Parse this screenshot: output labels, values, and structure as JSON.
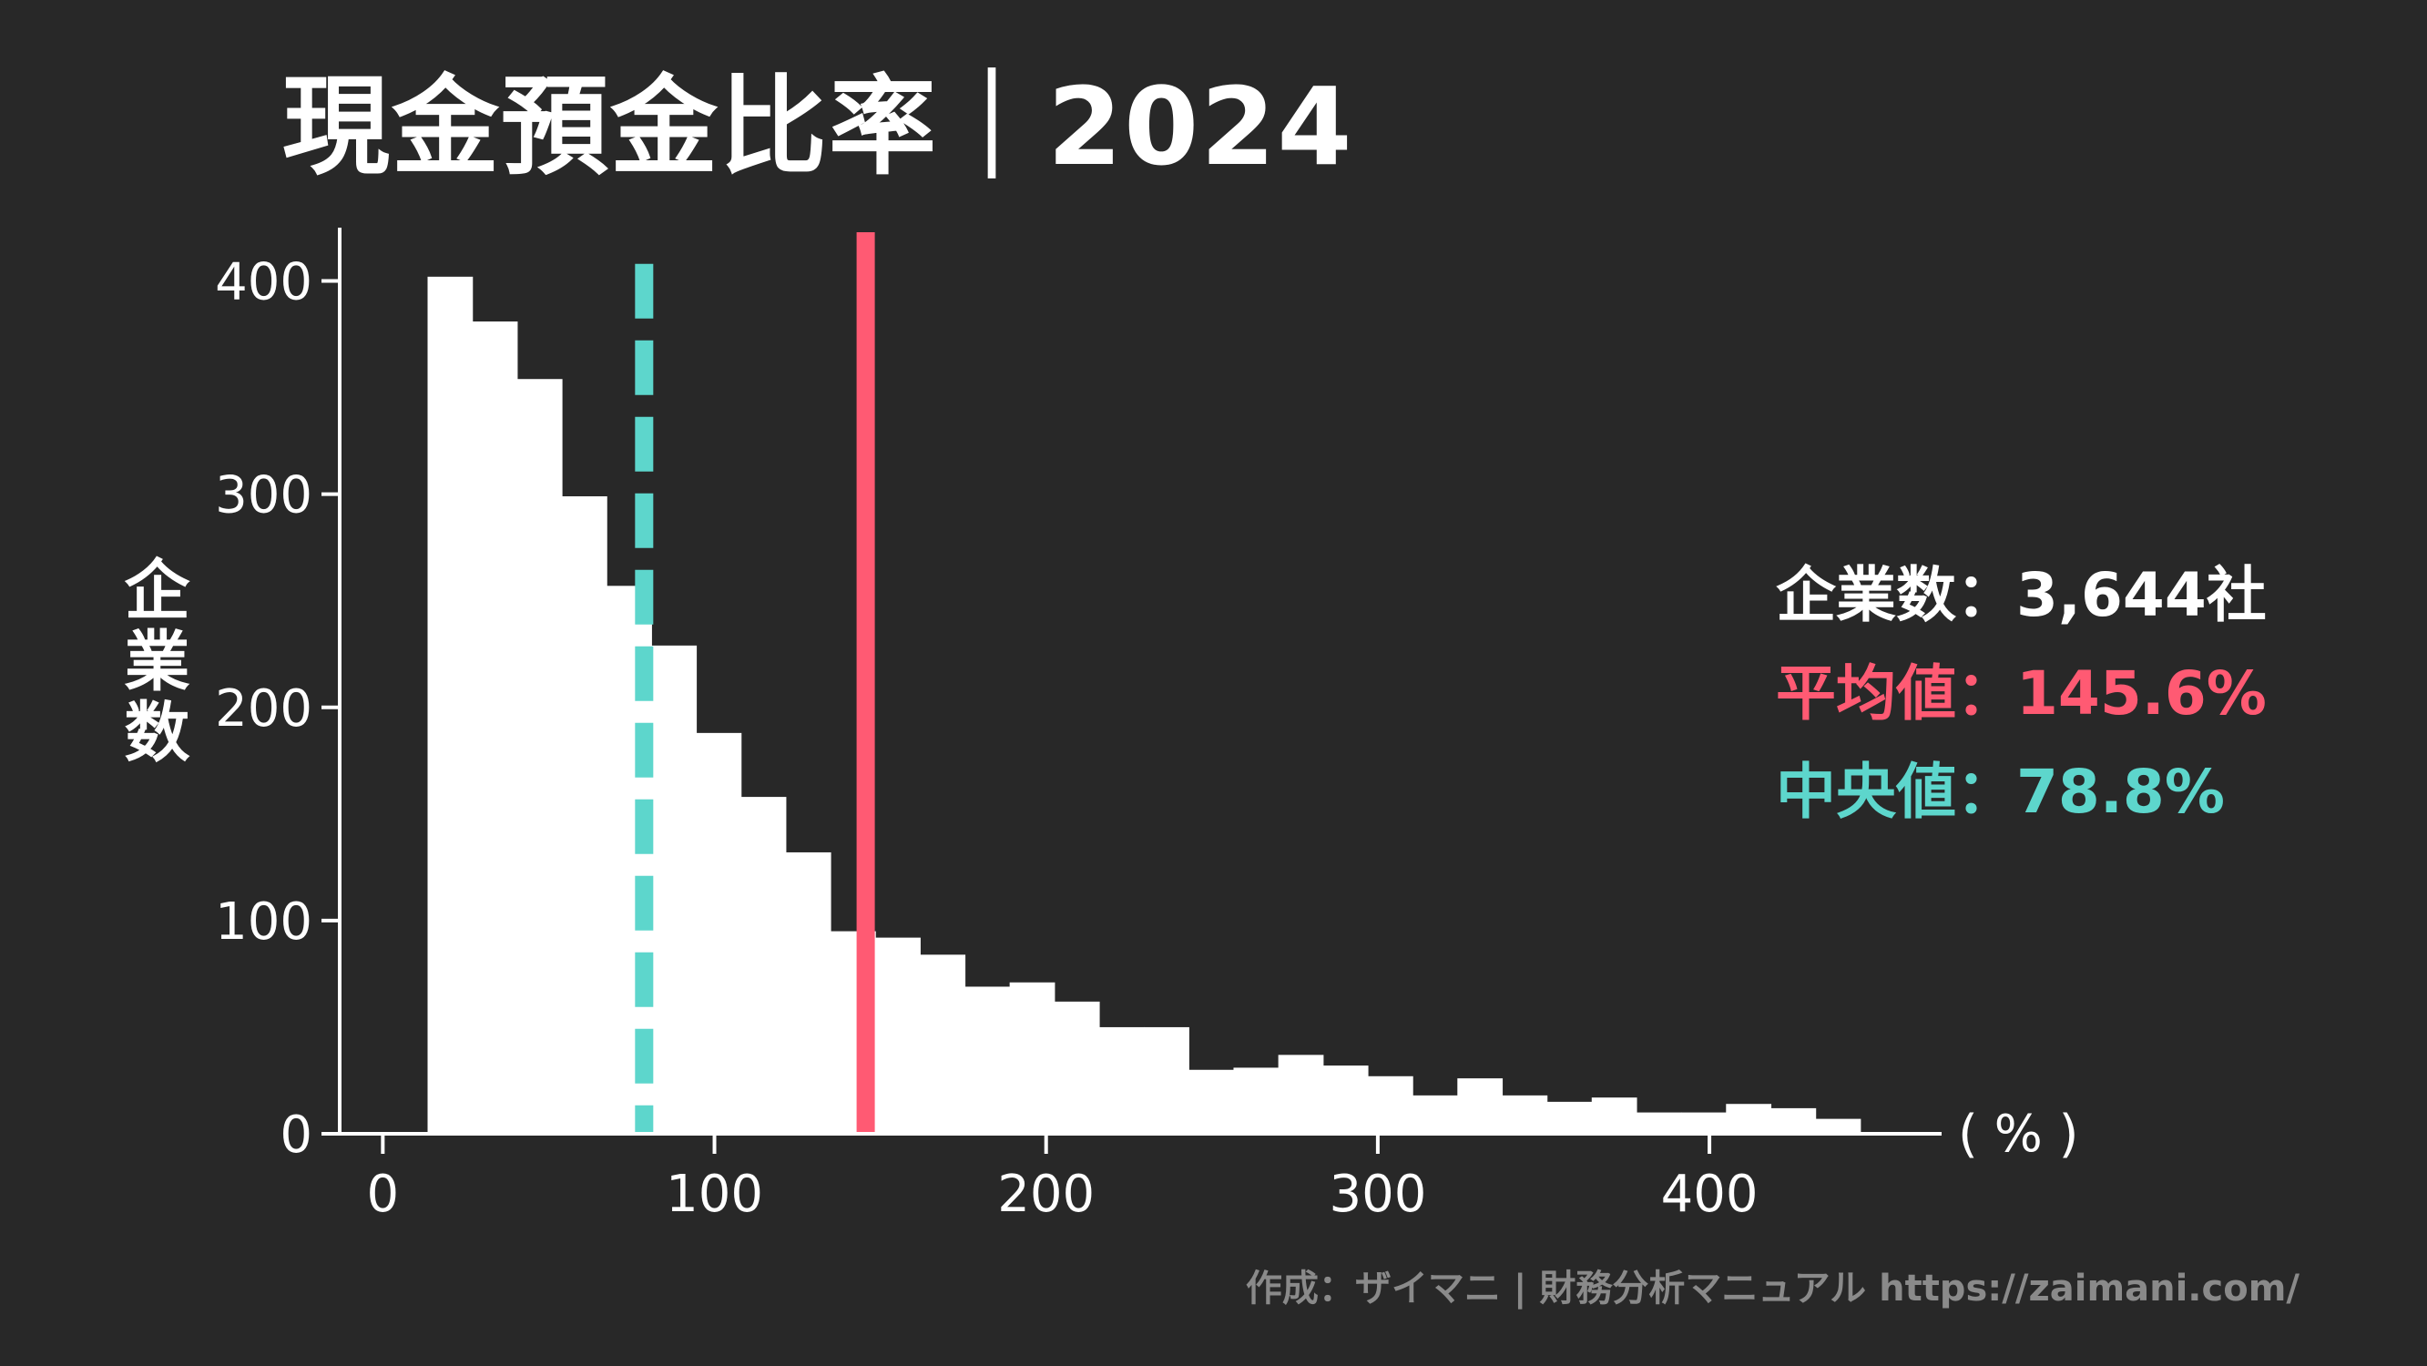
{
  "title": "現金預金比率｜2024",
  "ylabel": "企業数",
  "stats": {
    "count": {
      "label": "企業数：",
      "value": "3,644社",
      "color": "#ffffff"
    },
    "mean": {
      "label": "平均値：",
      "value": "145.6%",
      "color": "#ff5a73"
    },
    "median": {
      "label": "中央値：",
      "value": "78.8%",
      "color": "#5dd6cc"
    }
  },
  "credit": "作成：ザイマニ | 財務分析マニュアル https://zaimani.com/",
  "chart_data": {
    "type": "histogram",
    "bin_width": 13.5,
    "x_start": 0,
    "values": [
      0,
      402,
      381,
      354,
      299,
      257,
      229,
      188,
      158,
      132,
      95,
      92,
      84,
      69,
      71,
      62,
      50,
      50,
      30,
      31,
      37,
      32,
      27,
      18,
      26,
      18,
      15,
      17,
      10,
      10,
      14,
      12,
      7
    ],
    "bar_color": "#ffffff",
    "xlim": [
      -13,
      470
    ],
    "ylim": [
      0,
      425
    ],
    "xticks": [
      0,
      100,
      200,
      300,
      400
    ],
    "yticks": [
      0,
      100,
      200,
      300,
      400
    ],
    "x_unit_label": "( % )",
    "ylabel": "企業数",
    "mean": 145.6,
    "median": 78.8,
    "mean_color": "#ff5a73",
    "median_color": "#5dd6cc"
  }
}
